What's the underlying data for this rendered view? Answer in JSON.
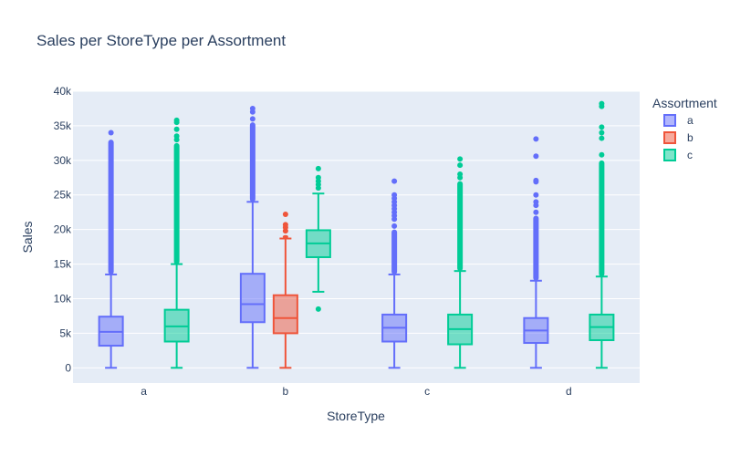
{
  "chart_data": {
    "type": "box",
    "title": "Sales per StoreType per Assortment",
    "xlabel": "StoreType",
    "ylabel": "Sales",
    "categories": [
      "a",
      "b",
      "c",
      "d"
    ],
    "ylim": [
      -2200,
      40000
    ],
    "y_ticks": [
      0,
      5000,
      10000,
      15000,
      20000,
      25000,
      30000,
      35000,
      40000
    ],
    "y_tick_labels": [
      "0",
      "5k",
      "10k",
      "15k",
      "20k",
      "25k",
      "30k",
      "35k",
      "40k"
    ],
    "grid": true,
    "legend": {
      "title": "Assortment",
      "placement": "top-right"
    },
    "series": [
      {
        "name": "a",
        "color": "#636efa",
        "boxes": [
          {
            "category": "a",
            "min": 0,
            "q1": 3200,
            "median": 5200,
            "q3": 7400,
            "max": 13500,
            "outliers_dense": [
              13500,
              33000
            ],
            "outliers": [
              34000
            ]
          },
          {
            "category": "b",
            "min": 0,
            "q1": 6600,
            "median": 9200,
            "q3": 13600,
            "max": 24000,
            "outliers_dense": [
              24000,
              35500
            ],
            "outliers": [
              36000,
              37000,
              37500
            ]
          },
          {
            "category": "c",
            "min": 0,
            "q1": 3800,
            "median": 5800,
            "q3": 7700,
            "max": 13500,
            "outliers_dense": [
              13500,
              20000
            ],
            "outliers": [
              20500,
              21500,
              22000,
              22500,
              23000,
              23500,
              24000,
              24500,
              25000,
              27000
            ]
          },
          {
            "category": "d",
            "min": 0,
            "q1": 3600,
            "median": 5400,
            "q3": 7200,
            "max": 12600,
            "outliers_dense": [
              12600,
              22000
            ],
            "outliers": [
              22500,
              23500,
              24000,
              25000,
              26900,
              27100,
              30600,
              33100
            ]
          }
        ]
      },
      {
        "name": "b",
        "color": "#ef553b",
        "boxes": [
          {
            "category": "b",
            "min": 0,
            "q1": 5000,
            "median": 7200,
            "q3": 10500,
            "max": 18700,
            "outliers_dense": [
              18700,
              19200
            ],
            "outliers": [
              19800,
              20300,
              20700,
              22200
            ]
          }
        ]
      },
      {
        "name": "c",
        "color": "#00cc96",
        "boxes": [
          {
            "category": "a",
            "min": 0,
            "q1": 3800,
            "median": 6000,
            "q3": 8400,
            "max": 15000,
            "outliers_dense": [
              15000,
              32500
            ],
            "outliers": [
              33000,
              33500,
              34500,
              35500,
              35800
            ]
          },
          {
            "category": "b",
            "min": 11000,
            "q1": 16000,
            "median": 18000,
            "q3": 19900,
            "max": 25200,
            "outliers_dense": [],
            "outliers": [
              8500,
              26000,
              26500,
              27000,
              27500,
              28800
            ]
          },
          {
            "category": "c",
            "min": 0,
            "q1": 3400,
            "median": 5600,
            "q3": 7700,
            "max": 14000,
            "outliers_dense": [
              14000,
              27000
            ],
            "outliers": [
              27500,
              28000,
              29300,
              30200
            ]
          },
          {
            "category": "d",
            "min": 0,
            "q1": 4000,
            "median": 5900,
            "q3": 7700,
            "max": 13200,
            "outliers_dense": [
              13200,
              30000
            ],
            "outliers": [
              30800,
              33200,
              34000,
              34800,
              37800,
              38200
            ]
          }
        ]
      }
    ]
  }
}
